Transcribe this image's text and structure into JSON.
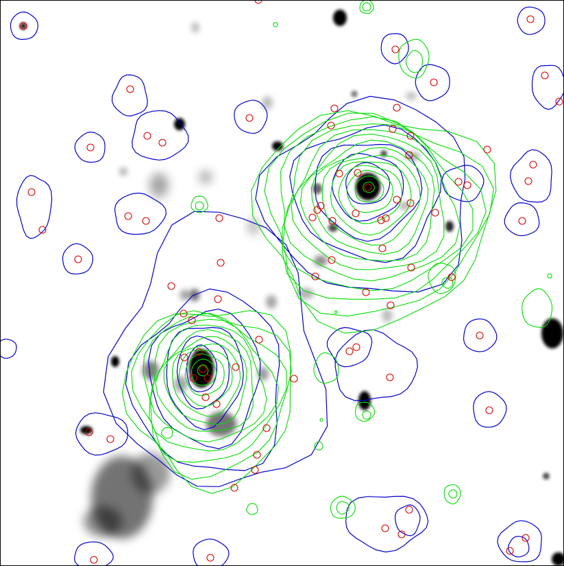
{
  "image": {
    "kind": "astronomical contour overlay",
    "background": "#ffffff",
    "frame_color": "#000000"
  },
  "layers": {
    "xray_contours": {
      "color": "#00dd00",
      "label": ""
    },
    "mass_contours": {
      "color": "#0000cc",
      "label": ""
    },
    "galaxy_markers": {
      "color": "#dd0000",
      "label": ""
    },
    "optical_image": {
      "color": "#000000",
      "label": ""
    }
  },
  "clusters": [
    {
      "id": "north-east"
    },
    {
      "id": "south-west"
    }
  ]
}
